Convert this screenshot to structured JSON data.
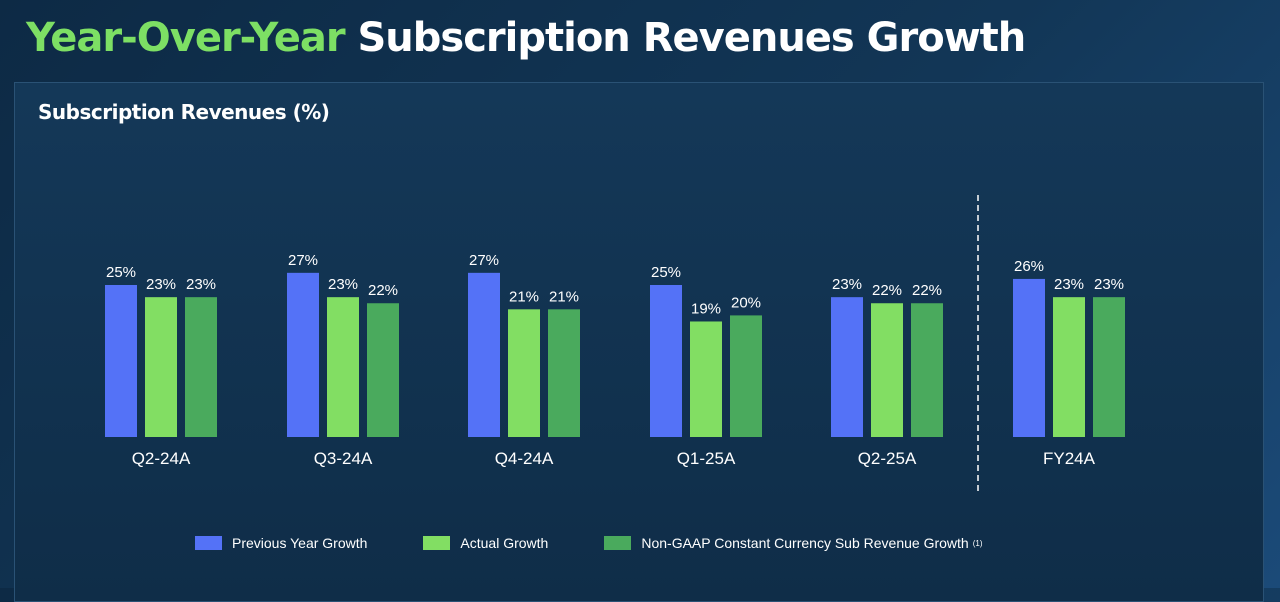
{
  "page": {
    "title_accent": "Year-Over-Year",
    "title_rest": "Subscription Revenues Growth"
  },
  "chart_data": {
    "type": "bar",
    "title": "Subscription Revenues (%)",
    "categories": [
      "Q2-24A",
      "Q3-24A",
      "Q4-24A",
      "Q1-25A",
      "Q2-25A",
      "FY24A"
    ],
    "series": [
      {
        "name": "Previous Year Growth",
        "color": "#5472f7",
        "values": [
          25,
          27,
          27,
          25,
          23,
          26
        ]
      },
      {
        "name": "Actual Growth",
        "color": "#82de63",
        "values": [
          23,
          23,
          21,
          19,
          22,
          23
        ]
      },
      {
        "name": "Non-GAAP Constant Currency Sub Revenue Growth",
        "footnote": "(1)",
        "color": "#4aaa5d",
        "values": [
          23,
          22,
          21,
          20,
          22,
          23
        ]
      }
    ],
    "value_suffix": "%",
    "separator_before": "FY24A",
    "legend_position": "bottom",
    "grid": false,
    "value_labels": true
  }
}
